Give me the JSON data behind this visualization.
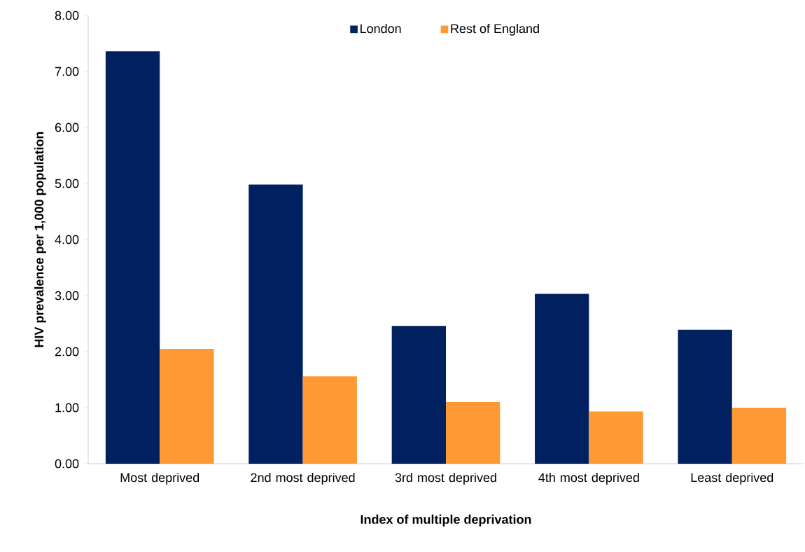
{
  "chart_data": {
    "type": "bar",
    "xlabel": "Index of multiple deprivation",
    "ylabel": "HIV prevalence per 1,000 population",
    "categories": [
      "Most deprived",
      "2nd most deprived",
      "3rd most deprived",
      "4th most deprived",
      "Least deprived"
    ],
    "series": [
      {
        "name": "London",
        "color": "#002060",
        "values": [
          7.36,
          4.98,
          2.46,
          3.03,
          2.39
        ]
      },
      {
        "name": "Rest of England",
        "color": "#ff9933",
        "values": [
          2.05,
          1.56,
          1.1,
          0.93,
          1.0
        ]
      }
    ],
    "ylim": [
      0,
      8
    ],
    "yticks": [
      {
        "value": 0,
        "label": "0.00"
      },
      {
        "value": 1,
        "label": "1.00"
      },
      {
        "value": 2,
        "label": "2.00"
      },
      {
        "value": 3,
        "label": "3.00"
      },
      {
        "value": 4,
        "label": "4.00"
      },
      {
        "value": 5,
        "label": "5.00"
      },
      {
        "value": 6,
        "label": "6.00"
      },
      {
        "value": 7,
        "label": "7.00"
      },
      {
        "value": 8,
        "label": "8.00"
      }
    ],
    "grid": false,
    "legend": "top"
  }
}
